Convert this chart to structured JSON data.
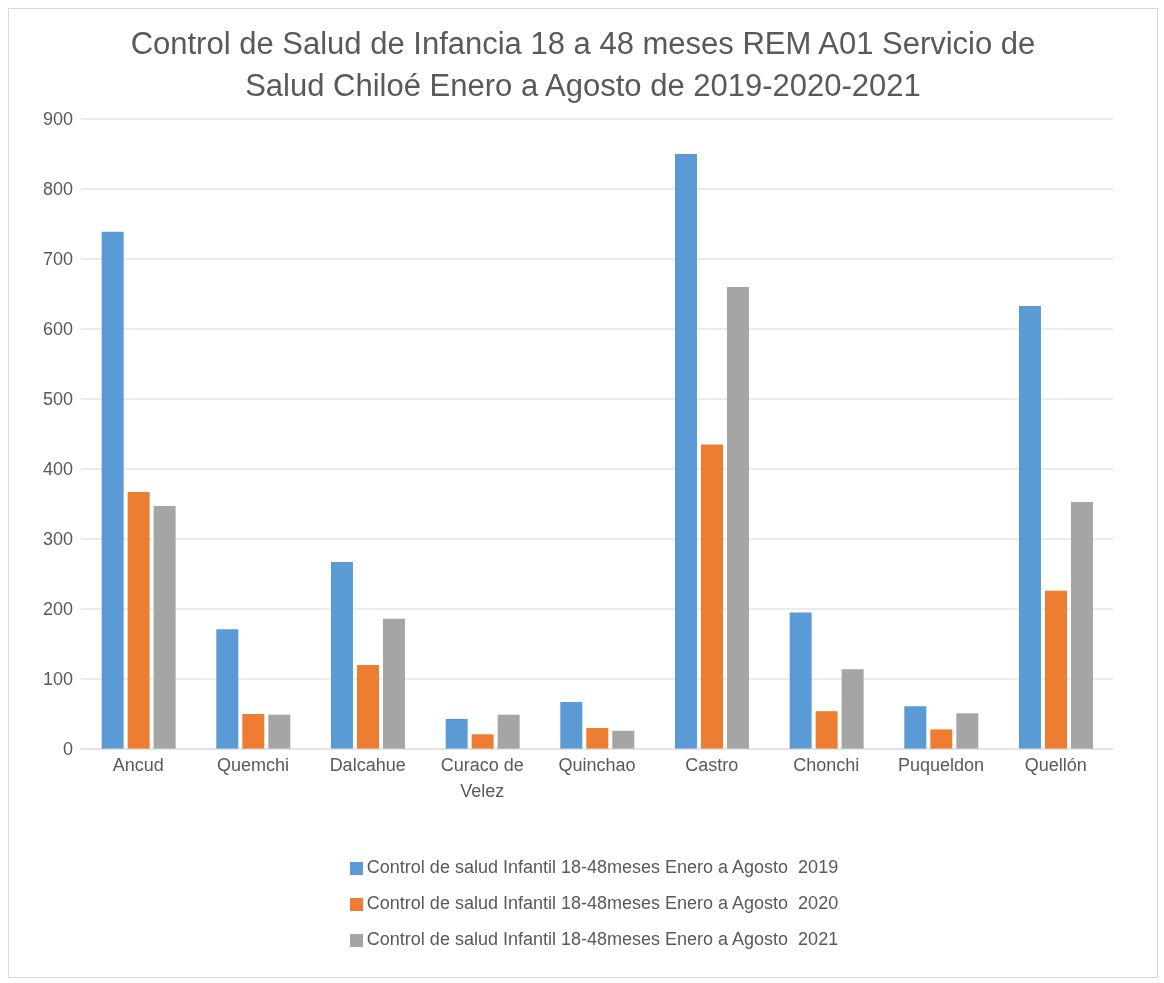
{
  "chart_data": {
    "type": "bar",
    "title": "Control de Salud de Infancia 18 a 48 meses REM A01 Servicio de Salud Chiloé Enero a Agosto de 2019-2020-2021",
    "categories": [
      "Ancud",
      "Quemchi",
      "Dalcahue",
      "Curaco de Velez",
      "Quinchao",
      "Castro",
      "Chonchi",
      "Puqueldon",
      "Quellón"
    ],
    "series": [
      {
        "name": "Control de salud Infantil 18-48meses Enero a Agosto  2019",
        "color": "#5b9bd5",
        "values": [
          739,
          171,
          267,
          43,
          67,
          850,
          195,
          61,
          633
        ]
      },
      {
        "name": "Control de salud Infantil 18-48meses Enero a Agosto  2020",
        "color": "#ed7d31",
        "values": [
          367,
          50,
          120,
          21,
          30,
          435,
          54,
          28,
          226
        ]
      },
      {
        "name": "Control de salud Infantil 18-48meses Enero a Agosto  2021",
        "color": "#a5a5a5",
        "values": [
          347,
          49,
          186,
          49,
          26,
          660,
          114,
          51,
          353
        ]
      }
    ],
    "ylim": [
      0,
      900
    ],
    "yticks": [
      0,
      100,
      200,
      300,
      400,
      500,
      600,
      700,
      800,
      900
    ],
    "grid": "y",
    "legend": "bottom"
  }
}
